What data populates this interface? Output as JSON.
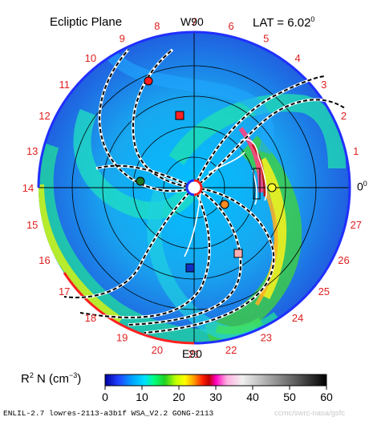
{
  "header": {
    "title": "Ecliptic Plane",
    "lat_label": "LAT = 6.02",
    "lat_degree": "0",
    "west_label": "W90"
  },
  "chart_data": {
    "type": "polar-heatmap",
    "title": "Ecliptic Plane",
    "latitude_deg": 6.02,
    "west_marker": "W90",
    "east_marker": "E90",
    "zero_marker": "0",
    "zero_degree": "0",
    "rim_labels": [
      "0",
      "1",
      "2",
      "3",
      "4",
      "5",
      "6",
      "7",
      "8",
      "9",
      "10",
      "11",
      "12",
      "13",
      "14",
      "15",
      "16",
      "17",
      "18",
      "19",
      "20",
      "21",
      "22",
      "23",
      "24",
      "25",
      "26",
      "27"
    ],
    "colorbar": {
      "label": "R",
      "label_sup": "2",
      "label_mid": " N (cm",
      "label_unit_sup": "−3",
      "label_end": ")",
      "ticks": [
        "0",
        "10",
        "20",
        "30",
        "40",
        "50",
        "60"
      ],
      "range": [
        0,
        60
      ]
    },
    "markers": [
      {
        "name": "red-circle",
        "shape": "circle",
        "color": "#ff2020"
      },
      {
        "name": "red-square",
        "shape": "square",
        "color": "#ff2020"
      },
      {
        "name": "green-circle",
        "shape": "circle",
        "color": "#1e7a28"
      },
      {
        "name": "orange-circle",
        "shape": "circle",
        "color": "#ff8a20"
      },
      {
        "name": "pink-square",
        "shape": "square",
        "color": "#ffb0b0"
      },
      {
        "name": "blue-square",
        "shape": "square",
        "color": "#1030c0"
      },
      {
        "name": "yellow-circle",
        "shape": "circle",
        "color": "#ffff30"
      }
    ]
  },
  "footer": {
    "model": "ENLIL-2.7 lowres-2113-a3b1f WSA_V2.2 GONG-2113",
    "watermark": "ccmc/swrc-nasa/gsfc"
  }
}
